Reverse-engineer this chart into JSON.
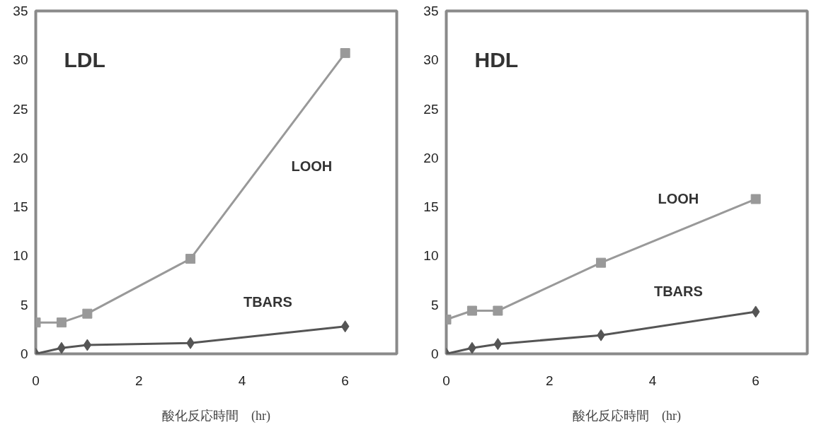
{
  "chart_data": [
    {
      "type": "line",
      "annotations": [
        "LDL"
      ],
      "xlabel": "酸化反応時間　(hr)",
      "x": [
        0,
        0.5,
        1,
        3,
        6
      ],
      "xlim": [
        0,
        7
      ],
      "xticks": [
        0,
        2,
        4,
        6
      ],
      "ylim": [
        0,
        35
      ],
      "yticks": [
        0,
        5,
        10,
        15,
        20,
        25,
        30,
        35
      ],
      "grid": false,
      "line_style": "solid",
      "series": [
        {
          "name": "LOOH",
          "color": "#999999",
          "marker": "square",
          "values": [
            3.2,
            3.2,
            4.1,
            9.7,
            30.7
          ]
        },
        {
          "name": "TBARS",
          "color": "#555555",
          "marker": "diamond",
          "values": [
            0,
            0.6,
            0.9,
            1.1,
            2.8
          ]
        }
      ]
    },
    {
      "type": "line",
      "annotations": [
        "HDL"
      ],
      "xlabel": "酸化反応時間　(hr)",
      "x": [
        0,
        0.5,
        1,
        3,
        6
      ],
      "xlim": [
        0,
        7
      ],
      "xticks": [
        0,
        2,
        4,
        6
      ],
      "ylim": [
        0,
        35
      ],
      "yticks": [
        0,
        5,
        10,
        15,
        20,
        25,
        30,
        35
      ],
      "grid": false,
      "line_style": "solid",
      "series": [
        {
          "name": "LOOH",
          "color": "#999999",
          "marker": "square",
          "values": [
            3.5,
            4.4,
            4.4,
            9.3,
            15.8
          ]
        },
        {
          "name": "TBARS",
          "color": "#555555",
          "marker": "diamond",
          "values": [
            0,
            0.6,
            1.0,
            1.9,
            4.3
          ]
        }
      ]
    }
  ]
}
